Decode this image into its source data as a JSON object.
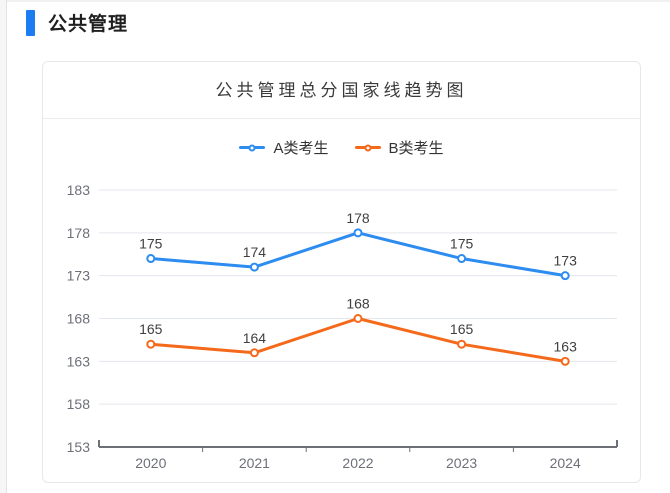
{
  "page": {
    "section_title": "公共管理"
  },
  "theme": {
    "accent_color": "#1c7df2",
    "grid_color": "#e3e7ee",
    "axis_color": "#6d7077",
    "tick_label_color": "#6e7079",
    "value_label_color": "#404040",
    "legend_text_color": "#333333"
  },
  "chart_data": {
    "type": "line",
    "title": "公共管理总分国家线趋势图",
    "categories": [
      "2020",
      "2021",
      "2022",
      "2023",
      "2024"
    ],
    "series": [
      {
        "name": "A类考生",
        "color": "#2d8cf0",
        "values": [
          175,
          174,
          178,
          175,
          173
        ]
      },
      {
        "name": "B类考生",
        "color": "#f5691a",
        "values": [
          165,
          164,
          168,
          165,
          163
        ]
      }
    ],
    "ylim": [
      153,
      183
    ],
    "yticks": [
      153,
      158,
      163,
      168,
      173,
      178,
      183
    ],
    "grid": true,
    "legend_position": "top",
    "value_labels": true,
    "xlabel": "",
    "ylabel": ""
  }
}
